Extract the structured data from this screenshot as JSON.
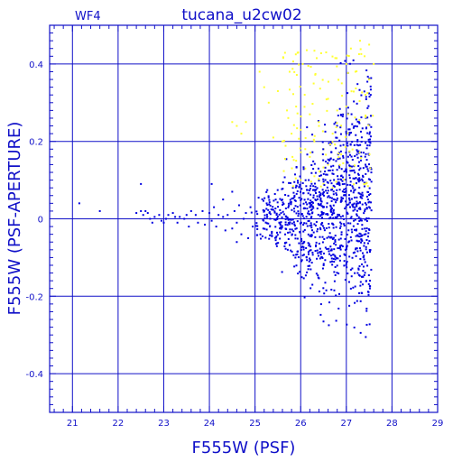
{
  "chart_data": {
    "type": "scatter",
    "chip_label": "WF4",
    "title": "tucana_u2cw02",
    "xlabel": "F555W (PSF)",
    "ylabel": "F555W (PSF-APERTURE)",
    "xlim": [
      20.5,
      29.0
    ],
    "ylim": [
      -0.5,
      0.5
    ],
    "xticks": [
      "21",
      "22",
      "23",
      "24",
      "25",
      "26",
      "27",
      "28",
      "29"
    ],
    "yticks": [
      "-0.4",
      "-0.2",
      "0",
      "0.2",
      "0.4"
    ],
    "grid": true,
    "colors": {
      "axis": "#1010c8",
      "grid": "#1010c8",
      "primary": "#0000e0",
      "secondary": "#ffff30"
    },
    "series": [
      {
        "color": "blue",
        "points": [
          [
            21.15,
            0.04
          ],
          [
            21.6,
            0.02
          ],
          [
            22.4,
            0.015
          ],
          [
            22.5,
            0.02
          ],
          [
            22.55,
            0.01
          ],
          [
            22.6,
            0.02
          ],
          [
            22.65,
            0.015
          ],
          [
            22.7,
            0.0
          ],
          [
            22.75,
            -0.01
          ],
          [
            22.8,
            0.005
          ],
          [
            22.9,
            0.01
          ],
          [
            22.95,
            -0.005
          ],
          [
            23.0,
            -0.01
          ],
          [
            23.05,
            0.0
          ],
          [
            23.1,
            0.01
          ],
          [
            23.2,
            0.015
          ],
          [
            23.25,
            0.005
          ],
          [
            23.3,
            -0.01
          ],
          [
            23.35,
            0.005
          ],
          [
            23.45,
            0.0
          ],
          [
            23.5,
            0.01
          ],
          [
            23.55,
            -0.02
          ],
          [
            23.6,
            0.02
          ],
          [
            23.7,
            0.01
          ],
          [
            23.75,
            -0.01
          ],
          [
            23.85,
            0.02
          ],
          [
            23.9,
            -0.015
          ],
          [
            24.0,
            0.015
          ],
          [
            24.05,
            -0.005
          ],
          [
            24.1,
            0.03
          ],
          [
            24.15,
            -0.02
          ],
          [
            24.2,
            0.01
          ],
          [
            24.3,
            0.005
          ],
          [
            24.35,
            -0.03
          ],
          [
            24.4,
            0.01
          ],
          [
            24.5,
            -0.025
          ],
          [
            24.55,
            0.02
          ],
          [
            24.6,
            -0.01
          ],
          [
            24.65,
            0.035
          ],
          [
            24.7,
            -0.04
          ],
          [
            24.75,
            0.0
          ],
          [
            24.8,
            0.015
          ],
          [
            24.85,
            -0.05
          ],
          [
            24.9,
            0.03
          ],
          [
            24.95,
            -0.02
          ],
          [
            24.05,
            0.09
          ],
          [
            24.3,
            0.05
          ],
          [
            24.5,
            0.07
          ],
          [
            22.5,
            0.09
          ],
          [
            24.6,
            -0.06
          ]
        ]
      },
      {
        "color": "yellow",
        "points": [
          [
            24.5,
            0.25
          ],
          [
            24.6,
            0.24
          ],
          [
            24.7,
            0.22
          ],
          [
            24.8,
            0.25
          ],
          [
            25.1,
            0.38
          ],
          [
            25.2,
            0.34
          ],
          [
            25.3,
            0.3
          ],
          [
            25.5,
            0.33
          ],
          [
            25.7,
            0.28
          ],
          [
            25.9,
            0.29
          ],
          [
            25.4,
            0.21
          ],
          [
            25.6,
            0.2
          ],
          [
            25.8,
            0.22
          ],
          [
            26.0,
            0.23
          ],
          [
            26.1,
            0.18
          ],
          [
            26.2,
            0.16
          ],
          [
            26.3,
            0.2
          ],
          [
            26.4,
            0.24
          ],
          [
            26.5,
            0.18
          ],
          [
            26.6,
            0.14
          ],
          [
            26.7,
            0.22
          ],
          [
            26.8,
            0.28
          ],
          [
            26.9,
            0.35
          ],
          [
            27.0,
            0.4
          ],
          [
            27.1,
            0.44
          ],
          [
            27.2,
            0.38
          ],
          [
            27.3,
            0.46
          ],
          [
            27.4,
            0.42
          ],
          [
            27.5,
            0.45
          ],
          [
            27.6,
            0.4
          ],
          [
            26.0,
            0.1
          ],
          [
            26.1,
            0.13
          ],
          [
            26.3,
            0.11
          ],
          [
            26.5,
            0.09
          ],
          [
            26.7,
            0.08
          ],
          [
            25.9,
            0.15
          ],
          [
            26.2,
            0.27
          ],
          [
            26.6,
            0.31
          ],
          [
            27.0,
            0.29
          ],
          [
            27.5,
            0.36
          ]
        ]
      }
    ]
  }
}
